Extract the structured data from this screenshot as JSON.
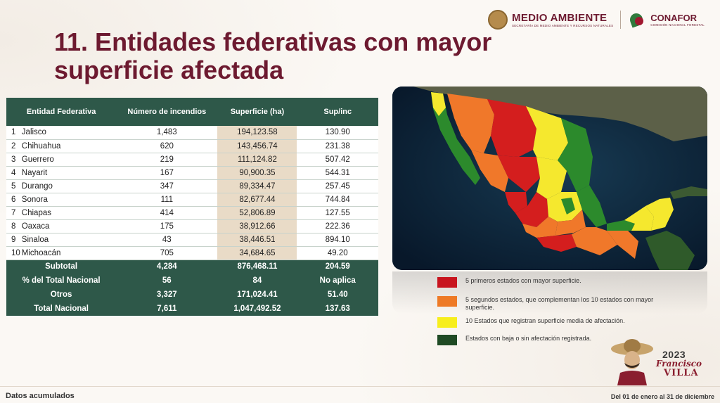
{
  "header": {
    "logo1_main": "MEDIO AMBIENTE",
    "logo1_sub": "SECRETARÍA DE MEDIO AMBIENTE Y RECURSOS NATURALES",
    "logo2_main": "CONAFOR",
    "logo2_sub": "COMISIÓN NACIONAL FORESTAL",
    "logo1_icon": "national-seal-icon",
    "logo2_icon": "conafor-leaf-icon"
  },
  "title": "11. Entidades federativas con mayor superficie afectada",
  "table": {
    "headers": [
      "Entidad Federativa",
      "Número de incendios",
      "Superficie (ha)",
      "Sup/inc"
    ],
    "rows": [
      {
        "rank": "1",
        "entidad": "Jalisco",
        "incendios": "1,483",
        "superficie": "194,123.58",
        "sup_inc": "130.90"
      },
      {
        "rank": "2",
        "entidad": "Chihuahua",
        "incendios": "620",
        "superficie": "143,456.74",
        "sup_inc": "231.38"
      },
      {
        "rank": "3",
        "entidad": "Guerrero",
        "incendios": "219",
        "superficie": "111,124.82",
        "sup_inc": "507.42"
      },
      {
        "rank": "4",
        "entidad": "Nayarit",
        "incendios": "167",
        "superficie": "90,900.35",
        "sup_inc": "544.31"
      },
      {
        "rank": "5",
        "entidad": "Durango",
        "incendios": "347",
        "superficie": "89,334.47",
        "sup_inc": "257.45"
      },
      {
        "rank": "6",
        "entidad": "Sonora",
        "incendios": "111",
        "superficie": "82,677.44",
        "sup_inc": "744.84"
      },
      {
        "rank": "7",
        "entidad": "Chiapas",
        "incendios": "414",
        "superficie": "52,806.89",
        "sup_inc": "127.55"
      },
      {
        "rank": "8",
        "entidad": "Oaxaca",
        "incendios": "175",
        "superficie": "38,912.66",
        "sup_inc": "222.36"
      },
      {
        "rank": "9",
        "entidad": "Sinaloa",
        "incendios": "43",
        "superficie": "38,446.51",
        "sup_inc": "894.10"
      },
      {
        "rank": "10",
        "entidad": "Michoacán",
        "incendios": "705",
        "superficie": "34,684.65",
        "sup_inc": "49.20"
      }
    ],
    "summary": [
      {
        "label": "Subtotal",
        "incendios": "4,284",
        "superficie": "876,468.11",
        "sup_inc": "204.59"
      },
      {
        "label": "% del Total Nacional",
        "incendios": "56",
        "superficie": "84",
        "sup_inc": "No aplica"
      },
      {
        "label": "Otros",
        "incendios": "3,327",
        "superficie": "171,024.41",
        "sup_inc": "51.40"
      },
      {
        "label": "Total Nacional",
        "incendios": "7,611",
        "superficie": "1,047,492.52",
        "sup_inc": "137.63"
      }
    ]
  },
  "map": {
    "icon": "mexico-affected-states-map",
    "colors": {
      "top5": "#d41e1e",
      "next5": "#f0782a",
      "medium": "#f5e82e",
      "low": "#2c8a2c",
      "sea": "#0c2233"
    }
  },
  "legend": [
    {
      "color": "#c8141e",
      "label": "5 primeros estados con mayor superficie."
    },
    {
      "color": "#ee7a26",
      "label": "5 segundos estados, que complementan los 10 estados con mayor superficie."
    },
    {
      "color": "#f7ee1c",
      "label": "10 Estados que registran superficie media de afectación."
    },
    {
      "color": "#1f4a24",
      "label": "Estados con baja o sin afectación registrada."
    }
  ],
  "footer": {
    "left": "Datos acumulados",
    "right": "Del 01 de enero al 31 de diciembre"
  },
  "badge": {
    "year": "2023",
    "name1": "Francisco",
    "name2": "VILLA",
    "icon": "francisco-villa-portrait-icon"
  }
}
